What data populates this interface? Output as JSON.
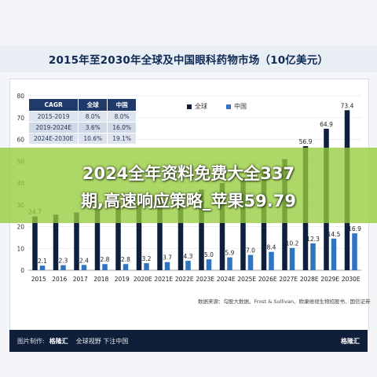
{
  "title": "2015年至2030年全球及中国眼科药物市场（10亿美元）",
  "banner": {
    "line1": "2024全年资料免费大全337",
    "line2": "期,高速响应策略_苹果59.79"
  },
  "cagr_table": {
    "headers": [
      "CAGR",
      "全球",
      "中国"
    ],
    "rows": [
      [
        "2015-2019",
        "8.0%",
        "8.0%"
      ],
      [
        "2019-2024E",
        "3.6%",
        "16.0%"
      ],
      [
        "2024E-2030E",
        "10.6%",
        "19.1%"
      ]
    ]
  },
  "source_text": "数据来源：勾股大数据、Frost & Sullivan、欧康维视生物招股书、国信证券",
  "footer": {
    "left_label": "图片制作:",
    "brand": "格隆汇",
    "slogan": "全球视野 下注中国",
    "brand_right": "格隆汇"
  },
  "colors": {
    "global": "#0e1f3d",
    "china": "#2f74c0",
    "banner": "#96cd3c",
    "footer": "#0f1f3a"
  },
  "chart_data": {
    "type": "bar",
    "title": "2015年至2030年全球及中国眼科药物市场（10亿美元）",
    "categories": [
      "2015",
      "2016",
      "2017",
      "2018",
      "2019",
      "2020E",
      "2021E",
      "2022E",
      "2023E",
      "2024E",
      "2025E",
      "2026E",
      "2027E",
      "2028E",
      "2029E",
      "2030E"
    ],
    "series": [
      {
        "name": "全球",
        "values": [
          24.7,
          25.5,
          26.5,
          28.0,
          31.0,
          30.5,
          33.0,
          35.0,
          37.0,
          40.0,
          42.5,
          46.0,
          51.0,
          56.9,
          64.9,
          73.4
        ]
      },
      {
        "name": "中国",
        "values": [
          2.1,
          2.3,
          2.4,
          2.8,
          2.8,
          3.2,
          3.7,
          4.3,
          5.0,
          5.9,
          7.0,
          8.4,
          10.2,
          12.3,
          14.5,
          16.9
        ]
      }
    ],
    "data_labels": {
      "global": [
        "24.7",
        "",
        "",
        "",
        "",
        "",
        "",
        "",
        "",
        "",
        "",
        "",
        "",
        "56.9",
        "64.9",
        "73.4"
      ],
      "china": [
        "2.1",
        "2.3",
        "2.4",
        "2.8",
        "2.8",
        "3.2",
        "3.7",
        "4.3",
        "5.0",
        "5.9",
        "7.0",
        "8.4",
        "10.2",
        "12.3",
        "14.5",
        "16.9"
      ]
    },
    "yticks": [
      0,
      10,
      20,
      30,
      40,
      50,
      60,
      70,
      80
    ],
    "ylim": [
      0,
      80
    ],
    "grid": true,
    "legend": "top-center"
  }
}
